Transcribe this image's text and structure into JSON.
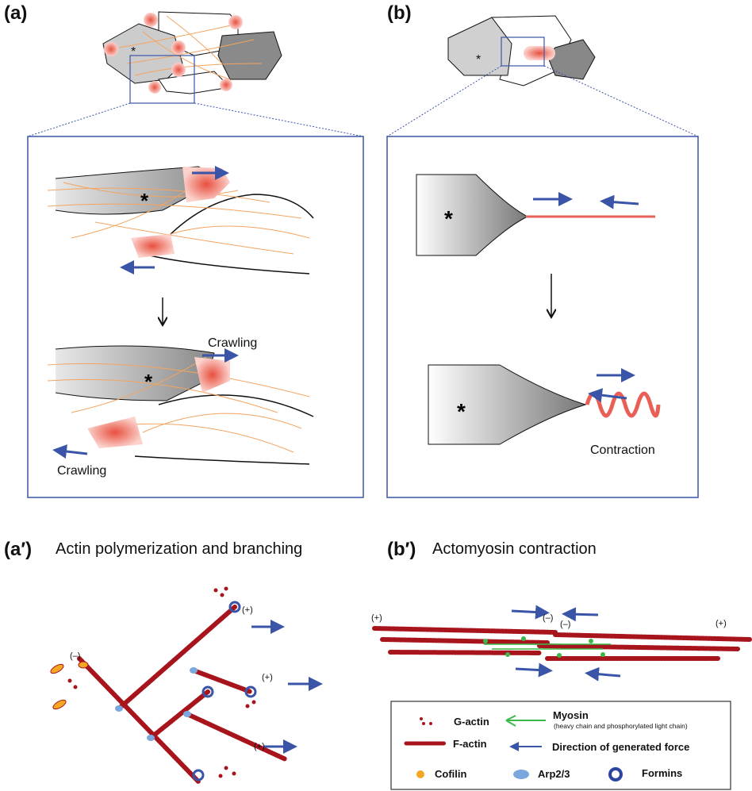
{
  "panels": {
    "a": {
      "label": "(a)",
      "crawling_top": "Crawling",
      "crawling_bottom": "Crawling",
      "asterisk": "*"
    },
    "b": {
      "label": "(b)",
      "contraction": "Contraction",
      "asterisk": "*"
    },
    "a_prime": {
      "label": "(a′)",
      "title": "Actin polymerization and branching",
      "plus": "(+)",
      "minus": "(–)"
    },
    "b_prime": {
      "label": "(b′)",
      "title": "Actomyosin contraction",
      "plus": "(+)",
      "minus": "(–)"
    }
  },
  "legend": {
    "g_actin": "G-actin",
    "f_actin": "F-actin",
    "myosin": "Myosin",
    "myosin_note": "(heavy chain and phosphorylated light chain)",
    "force": "Direction of generated force",
    "cofilin": "Cofilin",
    "arp": "Arp2/3",
    "formins": "Formins"
  },
  "colors": {
    "frame": "#3a55a8",
    "arrow": "#3a55a8",
    "actin": "#a8141c",
    "myosin": "#3cb84a",
    "cofilin": "#f5a623",
    "arp": "#7aa8dc",
    "filament": "#f4a460",
    "protrusion": "#e8605a"
  }
}
